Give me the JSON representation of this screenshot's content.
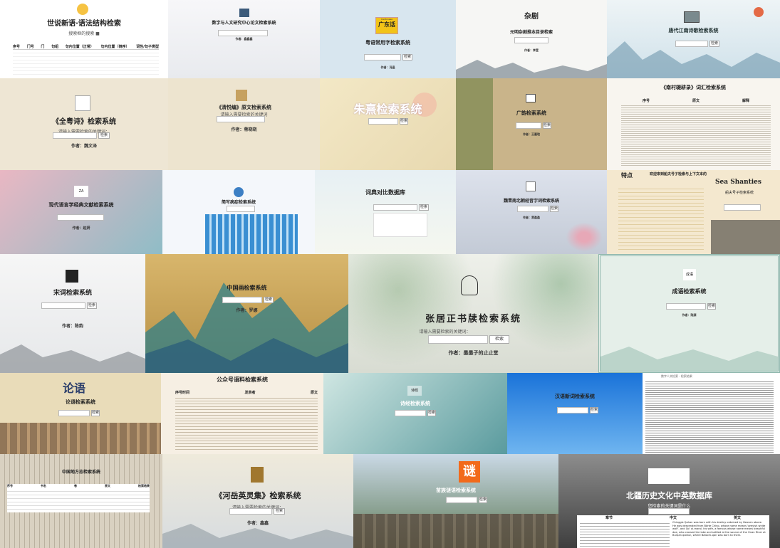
{
  "tiles": {
    "t1": {
      "title": "世说新语·语法结构检索",
      "subtitle": "搜索框的搜索 ■",
      "col": [
        "序号",
        "门号",
        "门",
        "句组",
        "句内位置（正常）",
        "句内位置（倒序）",
        "词性/句子类型"
      ]
    },
    "t2": {
      "title": "数字与人文研究中心论文检索系统",
      "author": "作者：鑫鑫鑫"
    },
    "t3": {
      "logo": "广东话",
      "logo_top": "Cantonese",
      "title": "粤语常用字检索系统",
      "button": "检索",
      "author": "作者：冯晶"
    },
    "t4": {
      "logo": "杂剧",
      "title": "元明杂剧推本目录检索",
      "author": "作者：李莹"
    },
    "t5": {
      "title": "唐代江南诗歌检索系统",
      "button": "检索"
    },
    "t6": {
      "title": "《全粤诗》检索系统",
      "label": "请输入需要检索的关键词：",
      "button": "检索",
      "author": "作者：魏文泽"
    },
    "t7": {
      "title": "《清悦编》原文检索系统",
      "label": "请输入需要检索的关键词",
      "author": "作者：蒋晓晓"
    },
    "t8": {
      "title": "朱熹检索系统",
      "button": "检索"
    },
    "t9": {
      "title": "广韵检索系统",
      "button": "检索",
      "author": "作者：王嘉瑄"
    },
    "t10": {
      "title": "《南村辍耕录》词汇检索系统",
      "col": [
        "序号",
        "原文",
        "解释"
      ]
    },
    "t11": {
      "logo": "ZA",
      "title": "现代语言学经典文献检索系统",
      "author": "作者：赵妍"
    },
    "t12": {
      "title": "简写病症检索系统"
    },
    "t13": {
      "title": "词典对比数据库",
      "button": "检索"
    },
    "t14": {
      "title": "魏晋南北朝经音字词检索系统",
      "button": "检索",
      "author": "作者：黄盈盈"
    },
    "t15": {
      "tag": "特点",
      "title": "Sea Shanties",
      "sub": "船夫号子检索系统",
      "head": "欢迎来到船夫号子检索与上下文本的"
    },
    "t16": {
      "title": "宋词检索系统",
      "button": "检索",
      "author": "作者：陈韵"
    },
    "t17": {
      "title": "中国画检索系统",
      "button": "检索",
      "author": "作者：罗娜"
    },
    "t18": {
      "title": "张居正书牍检索系统",
      "label": "请输入需要检索的关键词：",
      "button": "检索",
      "author": "作者：墨墨子的止止堂"
    },
    "t19": {
      "logo": "成语",
      "title": "成语检索系统",
      "button": "检索",
      "author": "作者：陆源"
    },
    "t20": {
      "logo": "论语",
      "title": "论语检索系统",
      "button": "检索"
    },
    "t21": {
      "title": "公众号语料检索系统",
      "col": [
        "序号时间",
        "发表者",
        "原文"
      ]
    },
    "t22": {
      "logo": "诗经",
      "title": "诗经检索系统",
      "button": "检索"
    },
    "t23": {
      "title": "汉语新词检索系统",
      "button": "检索"
    },
    "t24": {
      "head": "数字人文检索 · 检索结果"
    },
    "t25": {
      "title": "中国地方志检索系统",
      "col": [
        "序号",
        "书名",
        "卷",
        "原文",
        "检索结果"
      ]
    },
    "t26": {
      "title": "《河岳英灵集》检索系统",
      "label": "请输入需要检索的关键词：",
      "button": "检索",
      "author": "作者：鑫鑫"
    },
    "t27": {
      "logo": "谜",
      "title": "苗族谜语检索系统",
      "button": "检索"
    },
    "t28": {
      "title": "北疆历史文化中英数据库",
      "sub": "您检索的关键词是什么",
      "col": [
        "章节",
        "中文",
        "英文"
      ],
      "en": "Chinggis Qahan was born with his destiny ordained by Heaven above. He was descended from Börte Chino, whose name means ‘greyish white wolf’, and Qo’ ai-maral, his wife, a famous whose name means beautiful doe, who crossed the lake and settled at the source of the Onan River at Burqan qaldun, where Batachi-qan was born to them."
    }
  },
  "colors": {
    "accent_blue": "#2a6fdb",
    "paper": "#f3ead6",
    "mist": "#dbe6ef",
    "dark": "#222222"
  }
}
